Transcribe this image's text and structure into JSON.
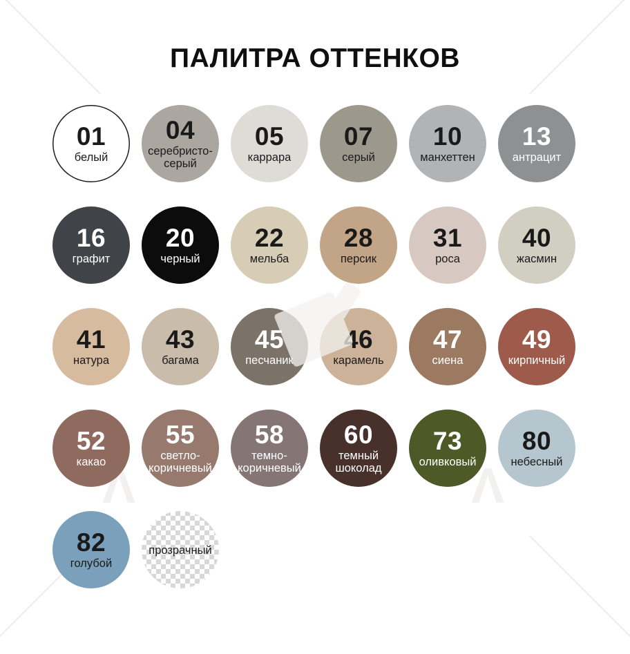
{
  "title": "ПАЛИТРА ОТТЕНКОВ",
  "colors": {
    "page_background": "#ffffff",
    "title_text": "#0f0f0f",
    "checker_dark": "#d8d8d8",
    "checker_light": "#ffffff"
  },
  "palette": {
    "circles": [
      {
        "code": "01",
        "label": "белый",
        "color": "#ffffff",
        "text_color": "#1a1a1a",
        "border": "#1c1c1c"
      },
      {
        "code": "04",
        "label": "серебристо-серый",
        "color": "#aba7a0",
        "text_color": "#1a1a1a"
      },
      {
        "code": "05",
        "label": "каррара",
        "color": "#dedcd7",
        "text_color": "#1a1a1a"
      },
      {
        "code": "07",
        "label": "серый",
        "color": "#9c998c",
        "text_color": "#1a1a1a"
      },
      {
        "code": "10",
        "label": "манхеттен",
        "color": "#b2b3b5",
        "text_color": "#1a1a1a"
      },
      {
        "code": "13",
        "label": "антрацит",
        "color": "#8f9092",
        "text_color": "#ffffff"
      },
      {
        "code": "16",
        "label": "графит",
        "color": "#404347",
        "text_color": "#ffffff"
      },
      {
        "code": "20",
        "label": "черный",
        "color": "#0c0c0c",
        "text_color": "#ffffff"
      },
      {
        "code": "22",
        "label": "мельба",
        "color": "#d7ccb5",
        "text_color": "#1a1a1a"
      },
      {
        "code": "28",
        "label": "персик",
        "color": "#c2a486",
        "text_color": "#1a1a1a"
      },
      {
        "code": "31",
        "label": "роса",
        "color": "#d7c8c2",
        "text_color": "#1a1a1a"
      },
      {
        "code": "40",
        "label": "жасмин",
        "color": "#d1cfc1",
        "text_color": "#1a1a1a"
      },
      {
        "code": "41",
        "label": "натура",
        "color": "#d6bb9f",
        "text_color": "#1a1a1a"
      },
      {
        "code": "43",
        "label": "багама",
        "color": "#cabcab",
        "text_color": "#1a1a1a"
      },
      {
        "code": "45",
        "label": "песчаник",
        "color": "#7c7368",
        "text_color": "#ffffff"
      },
      {
        "code": "46",
        "label": "карамель",
        "color": "#ccb298",
        "text_color": "#1a1a1a"
      },
      {
        "code": "47",
        "label": "сиена",
        "color": "#9b7a61",
        "text_color": "#ffffff"
      },
      {
        "code": "49",
        "label": "кирпичный",
        "color": "#9e5a4a",
        "text_color": "#ffffff"
      },
      {
        "code": "52",
        "label": "какао",
        "color": "#8f6a5e",
        "text_color": "#ffffff"
      },
      {
        "code": "55",
        "label": "светло-коричневый",
        "color": "#97796e",
        "text_color": "#ffffff"
      },
      {
        "code": "58",
        "label": "темно-коричневый",
        "color": "#857675",
        "text_color": "#ffffff"
      },
      {
        "code": "60",
        "label": "темный шоколад",
        "color": "#48312a",
        "text_color": "#ffffff"
      },
      {
        "code": "73",
        "label": "оливковый",
        "color": "#4d5a28",
        "text_color": "#ffffff"
      },
      {
        "code": "80",
        "label": "небесный",
        "color": "#b6c6ce",
        "text_color": "#1a1a1a"
      },
      {
        "code": "82",
        "label": "голубой",
        "color": "#7aa0bb",
        "text_color": "#1a1a1a"
      },
      {
        "code": "",
        "label": "прозрачный",
        "color": "checker",
        "text_color": "#1a1a1a",
        "checker": true
      }
    ]
  }
}
